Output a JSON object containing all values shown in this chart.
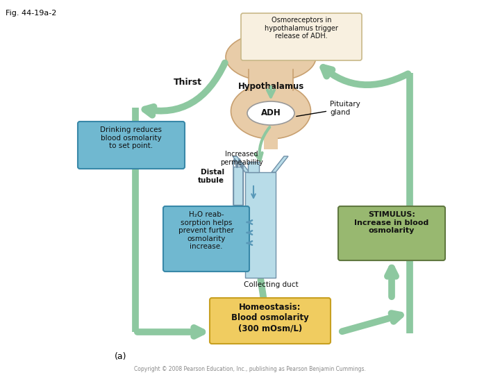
{
  "fig_label": "Fig. 44-19a-2",
  "copyright": "Copyright © 2008 Pearson Education, Inc., publishing as Pearson Benjamin Cummings.",
  "subfig_label": "(a)",
  "title_box_text": "Osmoreceptors in\nhypothalamus trigger\nrelease of ADH.",
  "hypothalamus_label": "Hypothalamus",
  "thirst_label": "Thirst",
  "adh_label": "ADH",
  "pituitary_label": "Pituitary\ngland",
  "drinking_box_text": "Drinking reduces\nblood osmolarity\nto set point.",
  "increased_perm_text": "Increased\npermeability",
  "distal_tubule_text": "Distal\ntubule",
  "h2o_box_text": "H₂O reab-\nsorption helps\nprevent further\nosmolarity\nincrease.",
  "collecting_duct_text": "Collecting duct",
  "stimulus_box_text": "STIMULUS:\nIncrease in blood\nosmolarity",
  "homeostasis_box_text": "Homeostasis:\nBlood osmolarity\n(300 mOsm/L)",
  "colors": {
    "arrow_green": "#8dc8a0",
    "arrow_green_dark": "#6aaa80",
    "box_blue_fill": "#70b8d0",
    "box_blue_edge": "#3888a8",
    "box_green_fill": "#98b870",
    "box_green_edge": "#607840",
    "box_yellow_fill": "#f0cc60",
    "box_yellow_edge": "#c8a020",
    "hypo_fill": "#e8cca8",
    "hypo_edge": "#c8a070",
    "title_fill": "#f8f0e0",
    "title_edge": "#c8b888",
    "adh_fill": "#ffffff",
    "adh_edge": "#888888",
    "tubule_fill": "#b8dce8",
    "tubule_edge": "#7090a8",
    "white": "#ffffff",
    "black": "#000000",
    "text_dark": "#111111",
    "text_blue_arrow": "#5898b8"
  }
}
